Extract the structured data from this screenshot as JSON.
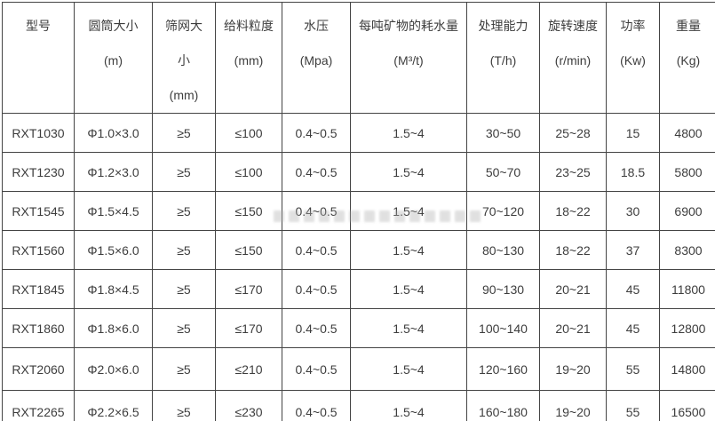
{
  "colors": {
    "text": "#3d3d3d",
    "border": "#444444",
    "background": "#ffffff",
    "watermark": "#b0b0b0"
  },
  "chart_data": {
    "type": "table",
    "title": "",
    "columns": [
      {
        "id": "model",
        "label": "型号",
        "unit": "",
        "lines": [
          "型号"
        ]
      },
      {
        "id": "cylinder-size",
        "label": "圆筒大小",
        "unit": "m",
        "lines": [
          "圆筒大小",
          "(m)"
        ]
      },
      {
        "id": "screen-size",
        "label": "筛网大小",
        "unit": "mm",
        "lines": [
          "筛网大",
          "小",
          "(mm)"
        ]
      },
      {
        "id": "feed-size",
        "label": "给料粒度",
        "unit": "mm",
        "lines": [
          "给料粒度",
          "(mm)"
        ]
      },
      {
        "id": "water-pressure",
        "label": "水压",
        "unit": "Mpa",
        "lines": [
          "水压",
          "(Mpa)"
        ]
      },
      {
        "id": "water-per-ton",
        "label": "每吨矿物的耗水量",
        "unit": "M³/t",
        "lines": [
          "每吨矿物的耗水量",
          "(M³/t)"
        ]
      },
      {
        "id": "capacity",
        "label": "处理能力",
        "unit": "T/h",
        "lines": [
          "处理能力",
          "(T/h)"
        ]
      },
      {
        "id": "rotation-speed",
        "label": "旋转速度",
        "unit": "r/min",
        "lines": [
          "旋转速度",
          "(r/min)"
        ]
      },
      {
        "id": "power",
        "label": "功率",
        "unit": "Kw",
        "lines": [
          "功率",
          "(Kw)"
        ]
      },
      {
        "id": "weight",
        "label": "重量",
        "unit": "Kg",
        "lines": [
          "重量",
          "(Kg)"
        ]
      }
    ],
    "rows": [
      [
        "RXT1030",
        "Φ1.0×3.0",
        "≥5",
        "≤100",
        "0.4~0.5",
        "1.5~4",
        "30~50",
        "25~28",
        "15",
        "4800"
      ],
      [
        "RXT1230",
        "Φ1.2×3.0",
        "≥5",
        "≤100",
        "0.4~0.5",
        "1.5~4",
        "50~70",
        "23~25",
        "18.5",
        "5800"
      ],
      [
        "RXT1545",
        "Φ1.5×4.5",
        "≥5",
        "≤150",
        "0.4~0.5",
        "1.5~4",
        "70~120",
        "18~22",
        "30",
        "6900"
      ],
      [
        "RXT1560",
        "Φ1.5×6.0",
        "≥5",
        "≤150",
        "0.4~0.5",
        "1.5~4",
        "80~130",
        "18~22",
        "37",
        "8300"
      ],
      [
        "RXT1845",
        "Φ1.8×4.5",
        "≥5",
        "≤170",
        "0.4~0.5",
        "1.5~4",
        "90~130",
        "20~21",
        "45",
        "11800"
      ],
      [
        "RXT1860",
        "Φ1.8×6.0",
        "≥5",
        "≤170",
        "0.4~0.5",
        "1.5~4",
        "100~140",
        "20~21",
        "45",
        "12800"
      ],
      [
        "RXT2060",
        "Φ2.0×6.0",
        "≥5",
        "≤210",
        "0.4~0.5",
        "1.5~4",
        "120~160",
        "19~20",
        "55",
        "14800"
      ],
      [
        "RXT2265",
        "Φ2.2×6.5",
        "≥5",
        "≤230",
        "0.4~0.5",
        "1.5~4",
        "160~180",
        "19~20",
        "55",
        "16500"
      ]
    ]
  }
}
